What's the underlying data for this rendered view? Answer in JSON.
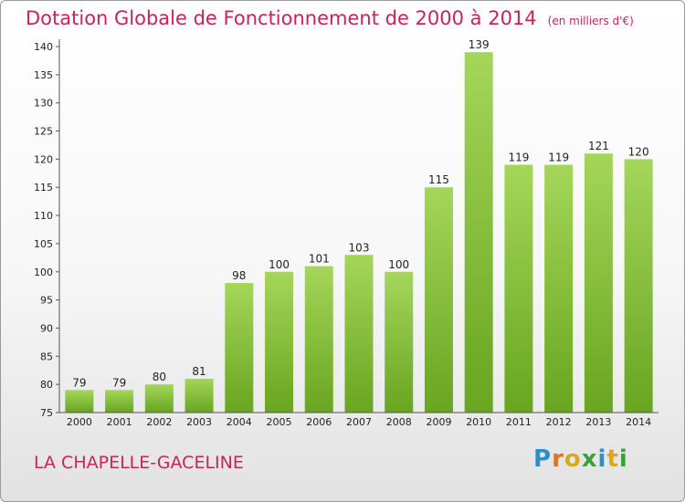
{
  "header": {
    "title": "Dotation Globale de Fonctionnement de 2000 à 2014",
    "unit": "(en milliers d'€)"
  },
  "footer": {
    "commune": "LA CHAPELLE-GACELINE",
    "logo_letters": [
      "P",
      "r",
      "o",
      "x",
      "i",
      "t",
      "i"
    ],
    "logo_colors": [
      "#2c8ecb",
      "#e2731f",
      "#d9a91c",
      "#3ca03c",
      "#2c8ecb",
      "#d9a91c",
      "#3ca03c"
    ]
  },
  "colors": {
    "title": "#c8235b",
    "bar_light": "#a4d65a",
    "bar_dark": "#68a520",
    "axis": "#555555",
    "text": "#222222"
  },
  "chart_data": {
    "type": "bar",
    "title": "Dotation Globale de Fonctionnement de 2000 à 2014",
    "subtitle": "(en milliers d'€)",
    "xlabel": "",
    "ylabel": "",
    "categories": [
      "2000",
      "2001",
      "2002",
      "2003",
      "2004",
      "2005",
      "2006",
      "2007",
      "2008",
      "2009",
      "2010",
      "2011",
      "2012",
      "2013",
      "2014"
    ],
    "values": [
      79,
      79,
      80,
      81,
      98,
      100,
      101,
      103,
      100,
      115,
      139,
      119,
      119,
      121,
      120
    ],
    "ylim": [
      75,
      140
    ],
    "yticks": [
      75,
      80,
      85,
      90,
      95,
      100,
      105,
      110,
      115,
      120,
      125,
      130,
      135,
      140
    ],
    "grid": false,
    "legend": "none"
  }
}
